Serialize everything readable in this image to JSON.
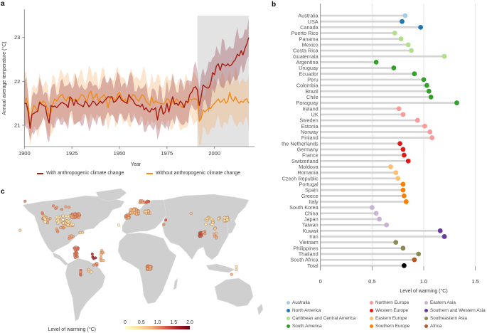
{
  "panels": {
    "a": "a",
    "b": "b",
    "c": "c"
  },
  "chart_data": [
    {
      "type": "line",
      "panel": "a",
      "title": "",
      "xlabel": "Year",
      "ylabel": "Annual average temperature (°C)",
      "xlim": [
        1900,
        2018
      ],
      "ylim": [
        20.5,
        23.6
      ],
      "xticks": [
        1900,
        1925,
        1950,
        1975,
        2000
      ],
      "yticks": [
        21,
        22,
        23
      ],
      "shaded_region": {
        "from": 1991,
        "to": 2018,
        "color": "#e3e3e3"
      },
      "legend": {
        "placement": "bottom",
        "entries": [
          {
            "label": "With anthropogenic climate change",
            "color": "#a51d12"
          },
          {
            "label": "Without anthropogenic climate change",
            "color": "#f28a14"
          }
        ]
      },
      "x_start": 1900,
      "series": [
        {
          "name": "With anthropogenic climate change",
          "color": "#a51d12",
          "band_color": "#8e2f3c",
          "band_halfwidth": 0.42,
          "values": [
            21.5,
            21.5,
            21.3,
            20.93,
            21.25,
            21.27,
            21.3,
            21.32,
            21.52,
            21.48,
            21.45,
            21.43,
            21.2,
            21.05,
            21.45,
            21.42,
            21.44,
            21.4,
            21.45,
            21.5,
            21.52,
            21.49,
            21.47,
            21.4,
            21.65,
            21.6,
            21.45,
            21.58,
            21.5,
            21.47,
            21.45,
            21.42,
            21.55,
            21.5,
            21.42,
            21.47,
            21.55,
            21.52,
            21.45,
            21.5,
            21.55,
            21.5,
            21.55,
            21.6,
            21.65,
            21.64,
            21.65,
            21.52,
            21.55,
            21.6,
            21.68,
            21.58,
            21.55,
            21.52,
            21.5,
            21.7,
            21.62,
            21.58,
            21.5,
            21.45,
            21.45,
            21.42,
            21.48,
            21.35,
            21.4,
            21.33,
            21.3,
            21.38,
            21.35,
            21.4,
            21.12,
            21.35,
            21.45,
            21.25,
            21.3,
            21.5,
            21.3,
            21.5,
            21.65,
            21.48,
            21.5,
            21.45,
            21.55,
            21.5,
            21.4,
            21.55,
            21.52,
            21.7,
            21.75,
            21.85,
            21.88,
            21.8,
            21.45,
            21.65,
            21.92,
            21.88,
            21.85,
            21.85,
            21.95,
            22.2,
            22.15,
            22.35,
            22.4,
            22.25,
            22.4,
            22.38,
            22.35,
            22.4,
            22.35,
            22.38,
            22.45,
            22.5,
            22.62,
            22.58,
            22.7,
            22.6,
            22.75,
            22.85,
            23.0
          ]
        },
        {
          "name": "Without anthropogenic climate change",
          "color": "#f28a14",
          "band_color": "#f6a55a",
          "band_halfwidth": 0.5,
          "values": [
            21.5,
            21.62,
            21.45,
            20.95,
            21.3,
            21.45,
            21.4,
            21.3,
            21.55,
            21.5,
            21.55,
            21.5,
            21.4,
            21.2,
            21.3,
            21.5,
            21.6,
            21.55,
            21.62,
            21.68,
            21.7,
            21.6,
            21.55,
            21.65,
            21.6,
            21.55,
            21.58,
            21.6,
            21.55,
            21.62,
            21.7,
            21.68,
            21.6,
            21.55,
            21.72,
            21.78,
            21.6,
            21.65,
            21.72,
            21.55,
            21.62,
            21.65,
            21.7,
            21.6,
            21.4,
            21.6,
            21.65,
            21.62,
            21.55,
            21.7,
            21.75,
            21.65,
            21.55,
            21.6,
            21.5,
            21.55,
            21.6,
            21.7,
            21.68,
            21.6,
            21.55,
            21.62,
            21.7,
            21.65,
            21.55,
            21.5,
            21.45,
            21.65,
            21.5,
            21.55,
            21.52,
            21.5,
            21.5,
            21.48,
            21.52,
            21.6,
            21.58,
            21.45,
            21.55,
            21.52,
            21.6,
            21.55,
            21.45,
            21.4,
            21.45,
            21.55,
            21.5,
            21.6,
            21.58,
            21.6,
            21.6,
            21.58,
            21.1,
            21.15,
            21.35,
            21.3,
            21.35,
            21.4,
            21.38,
            21.45,
            21.5,
            21.55,
            21.6,
            21.52,
            21.55,
            21.6,
            21.5,
            21.55,
            21.75,
            21.6,
            21.55,
            21.65,
            21.55,
            21.5,
            21.55,
            21.52,
            21.58,
            21.6,
            21.5
          ]
        }
      ]
    },
    {
      "type": "lollipop",
      "panel": "b",
      "xlabel": "Level of warming (°C)",
      "xlim": [
        0,
        1.55
      ],
      "xticks": [
        "0",
        "0.5",
        "1.0",
        "1.5"
      ],
      "xtick_values": [
        0,
        0.5,
        1.0,
        1.5
      ],
      "legend": {
        "placement": "bottom",
        "entries": [
          {
            "label": "Australia",
            "color": "#a6cee3"
          },
          {
            "label": "North America",
            "color": "#1f78b4"
          },
          {
            "label": "Caribbean and Central America",
            "color": "#b2df8a"
          },
          {
            "label": "South America",
            "color": "#33a02c"
          },
          {
            "label": "Northern Europe",
            "color": "#fb9a99"
          },
          {
            "label": "Western Europe",
            "color": "#e31a1c"
          },
          {
            "label": "Eastern Europe",
            "color": "#fdbf6f"
          },
          {
            "label": "Southern Europe",
            "color": "#ff7f00"
          },
          {
            "label": "Eastern Asia",
            "color": "#cab2d6"
          },
          {
            "label": "Southern and Western Asia",
            "color": "#6a3d9a"
          },
          {
            "label": "Southeastern Asia",
            "color": "#8c8a55"
          },
          {
            "label": "Africa",
            "color": "#b15928"
          }
        ]
      },
      "items": [
        {
          "label": "Australia",
          "value": 0.82,
          "group": 0
        },
        {
          "label": "USA",
          "value": 0.79,
          "group": 1
        },
        {
          "label": "Canada",
          "value": 0.97,
          "group": 1
        },
        {
          "label": "Puerto Rico",
          "value": 0.72,
          "group": 2
        },
        {
          "label": "Panama",
          "value": 0.78,
          "group": 2
        },
        {
          "label": "Mexico",
          "value": 0.85,
          "group": 2
        },
        {
          "label": "Costa Rica",
          "value": 0.88,
          "group": 2
        },
        {
          "label": "Guatemala",
          "value": 1.2,
          "group": 2
        },
        {
          "label": "Argentina",
          "value": 0.54,
          "group": 3
        },
        {
          "label": "Uruguay",
          "value": 0.71,
          "group": 3
        },
        {
          "label": "Ecuador",
          "value": 0.91,
          "group": 3
        },
        {
          "label": "Peru",
          "value": 1.0,
          "group": 3
        },
        {
          "label": "Colombia",
          "value": 1.03,
          "group": 3
        },
        {
          "label": "Brazil",
          "value": 1.05,
          "group": 3
        },
        {
          "label": "Chile",
          "value": 1.07,
          "group": 3
        },
        {
          "label": "Paraguay",
          "value": 1.32,
          "group": 3
        },
        {
          "label": "Ireland",
          "value": 0.76,
          "group": 4
        },
        {
          "label": "UK",
          "value": 0.8,
          "group": 4
        },
        {
          "label": "Sweden",
          "value": 0.94,
          "group": 4
        },
        {
          "label": "Estonia",
          "value": 1.01,
          "group": 4
        },
        {
          "label": "Norway",
          "value": 1.06,
          "group": 4
        },
        {
          "label": "Finland",
          "value": 1.08,
          "group": 4
        },
        {
          "label": "the Netherlands",
          "value": 0.77,
          "group": 5
        },
        {
          "label": "Germany",
          "value": 0.8,
          "group": 5
        },
        {
          "label": "France",
          "value": 0.81,
          "group": 5
        },
        {
          "label": "Switzerland",
          "value": 0.85,
          "group": 5
        },
        {
          "label": "Moldova",
          "value": 0.68,
          "group": 6
        },
        {
          "label": "Romania",
          "value": 0.73,
          "group": 6
        },
        {
          "label": "Czech Republic",
          "value": 0.75,
          "group": 6
        },
        {
          "label": "Portugal",
          "value": 0.8,
          "group": 7
        },
        {
          "label": "Spain",
          "value": 0.8,
          "group": 7
        },
        {
          "label": "Greece",
          "value": 0.81,
          "group": 7
        },
        {
          "label": "Italy",
          "value": 0.83,
          "group": 7
        },
        {
          "label": "South Korea",
          "value": 0.5,
          "group": 8
        },
        {
          "label": "China",
          "value": 0.54,
          "group": 8
        },
        {
          "label": "Japan",
          "value": 0.57,
          "group": 8
        },
        {
          "label": "Taiwan",
          "value": 0.64,
          "group": 8
        },
        {
          "label": "Kuwait",
          "value": 1.16,
          "group": 9
        },
        {
          "label": "Iran",
          "value": 1.2,
          "group": 9
        },
        {
          "label": "Vietnam",
          "value": 0.73,
          "group": 10
        },
        {
          "label": "Philippines",
          "value": 0.8,
          "group": 10
        },
        {
          "label": "Thailand",
          "value": 0.95,
          "group": 10
        },
        {
          "label": "South Africa",
          "value": 0.91,
          "group": 11
        },
        {
          "label": "Total",
          "value": 0.81,
          "group": -1,
          "color": "#000000"
        }
      ]
    },
    {
      "type": "map",
      "panel": "c",
      "colorbar": {
        "label": "Level of warming (°C)",
        "ticks": [
          "0",
          "0.5",
          "1.0",
          "1.5",
          "2.0"
        ],
        "range": [
          0,
          2.0
        ],
        "colors": [
          "#fffbd2",
          "#fde3a0",
          "#f7b47c",
          "#d9694f",
          "#a8232b",
          "#6b0010"
        ]
      },
      "land_color": "#cfcfcf",
      "station_clusters": [
        {
          "region": "Western USA",
          "lon": -120,
          "lat": 38,
          "warming": 0.9,
          "count": 14,
          "spread": [
            6,
            8
          ]
        },
        {
          "region": "California coast",
          "lon": -121,
          "lat": 35,
          "warming": 0.3,
          "count": 6,
          "spread": [
            2,
            3
          ]
        },
        {
          "region": "Central USA",
          "lon": -95,
          "lat": 36,
          "warming": 0.35,
          "count": 28,
          "spread": [
            10,
            6
          ]
        },
        {
          "region": "Eastern USA",
          "lon": -78,
          "lat": 41,
          "warming": 0.95,
          "count": 40,
          "spread": [
            6,
            3
          ]
        },
        {
          "region": "Canada",
          "lon": -100,
          "lat": 52,
          "warming": 1.0,
          "count": 6,
          "spread": [
            14,
            3
          ]
        },
        {
          "region": "Alaska",
          "lon": -150,
          "lat": 61,
          "warming": 1.0,
          "count": 1,
          "spread": [
            0,
            0
          ]
        },
        {
          "region": "Hawaii",
          "lon": -157,
          "lat": 21,
          "warming": 0.6,
          "count": 1,
          "spread": [
            0,
            0
          ]
        },
        {
          "region": "Gulf coast",
          "lon": -90,
          "lat": 28,
          "warming": 0.6,
          "count": 8,
          "spread": [
            6,
            2
          ]
        },
        {
          "region": "Florida",
          "lon": -82,
          "lat": 29,
          "warming": 0.4,
          "count": 5,
          "spread": [
            1.5,
            2
          ]
        },
        {
          "region": "Mexico",
          "lon": -100,
          "lat": 22,
          "warming": 0.9,
          "count": 6,
          "spread": [
            5,
            3
          ]
        },
        {
          "region": "Central America",
          "lon": -85,
          "lat": 12,
          "warming": 1.0,
          "count": 5,
          "spread": [
            4,
            3
          ]
        },
        {
          "region": "Caribbean",
          "lon": -68,
          "lat": 18,
          "warming": 0.6,
          "count": 3,
          "spread": [
            4,
            1
          ]
        },
        {
          "region": "Andes",
          "lon": -77,
          "lat": -8,
          "warming": 1.1,
          "count": 22,
          "spread": [
            3,
            8
          ]
        },
        {
          "region": "Brazil interior",
          "lon": -50,
          "lat": -15,
          "warming": 1.6,
          "count": 5,
          "spread": [
            4,
            4
          ]
        },
        {
          "region": "Brazil coast",
          "lon": -40,
          "lat": -12,
          "warming": 0.8,
          "count": 10,
          "spread": [
            2,
            8
          ]
        },
        {
          "region": "Southern Brazil",
          "lon": -50,
          "lat": -25,
          "warming": 1.0,
          "count": 5,
          "spread": [
            3,
            2
          ]
        },
        {
          "region": "Uruguay/Argentina",
          "lon": -58,
          "lat": -33,
          "warming": 0.4,
          "count": 5,
          "spread": [
            3,
            2
          ]
        },
        {
          "region": "Chile",
          "lon": -71,
          "lat": -36,
          "warming": 1.1,
          "count": 5,
          "spread": [
            1,
            5
          ]
        },
        {
          "region": "Iberia",
          "lon": -4,
          "lat": 40,
          "warming": 0.9,
          "count": 25,
          "spread": [
            3,
            2.5
          ]
        },
        {
          "region": "Western Europe",
          "lon": 6,
          "lat": 47,
          "warming": 0.75,
          "count": 50,
          "spread": [
            6,
            4
          ]
        },
        {
          "region": "Eastern Europe",
          "lon": 25,
          "lat": 46,
          "warming": 0.6,
          "count": 14,
          "spread": [
            4,
            2
          ]
        },
        {
          "region": "Scandinavia",
          "lon": 18,
          "lat": 60,
          "warming": 0.9,
          "count": 8,
          "spread": [
            4,
            2
          ]
        },
        {
          "region": "Baltics/Finland",
          "lon": 25,
          "lat": 60,
          "warming": 1.2,
          "count": 6,
          "spread": [
            2,
            1
          ]
        },
        {
          "region": "Canary Islands",
          "lon": -16,
          "lat": 28,
          "warming": 0.3,
          "count": 1,
          "spread": [
            0,
            0
          ]
        },
        {
          "region": "Iran",
          "lon": 51,
          "lat": 35,
          "warming": 1.2,
          "count": 1,
          "spread": [
            0,
            0
          ]
        },
        {
          "region": "Kuwait",
          "lon": 48,
          "lat": 29,
          "warming": 1.1,
          "count": 1,
          "spread": [
            0,
            0
          ]
        },
        {
          "region": "Central Asia",
          "lon": 87,
          "lat": 44,
          "warming": 0.7,
          "count": 1,
          "spread": [
            0,
            0
          ]
        },
        {
          "region": "China",
          "lon": 113,
          "lat": 34,
          "warming": 0.4,
          "count": 12,
          "spread": [
            6,
            5
          ]
        },
        {
          "region": "Korea",
          "lon": 127,
          "lat": 37,
          "warming": 0.3,
          "count": 6,
          "spread": [
            1,
            1
          ]
        },
        {
          "region": "Japan",
          "lon": 137,
          "lat": 36,
          "warming": 0.35,
          "count": 20,
          "spread": [
            3,
            3
          ]
        },
        {
          "region": "Taiwan",
          "lon": 121,
          "lat": 24,
          "warming": 0.6,
          "count": 3,
          "spread": [
            1,
            1
          ]
        },
        {
          "region": "Thailand",
          "lon": 101,
          "lat": 15,
          "warming": 1.3,
          "count": 22,
          "spread": [
            2,
            3
          ]
        },
        {
          "region": "Vietnam",
          "lon": 106,
          "lat": 16,
          "warming": 0.8,
          "count": 4,
          "spread": [
            1.5,
            4
          ]
        },
        {
          "region": "Philippines",
          "lon": 122,
          "lat": 13,
          "warming": 0.8,
          "count": 5,
          "spread": [
            2,
            4
          ]
        },
        {
          "region": "South Africa",
          "lon": 27,
          "lat": -29,
          "warming": 0.95,
          "count": 30,
          "spread": [
            3,
            2.5
          ]
        },
        {
          "region": "Eastern Australia",
          "lon": 151,
          "lat": -30,
          "warming": 0.6,
          "count": 2,
          "spread": [
            1,
            3
          ]
        },
        {
          "region": "Southern Australia",
          "lon": 145,
          "lat": -38,
          "warming": 1.0,
          "count": 1,
          "spread": [
            0,
            0
          ]
        }
      ]
    }
  ]
}
